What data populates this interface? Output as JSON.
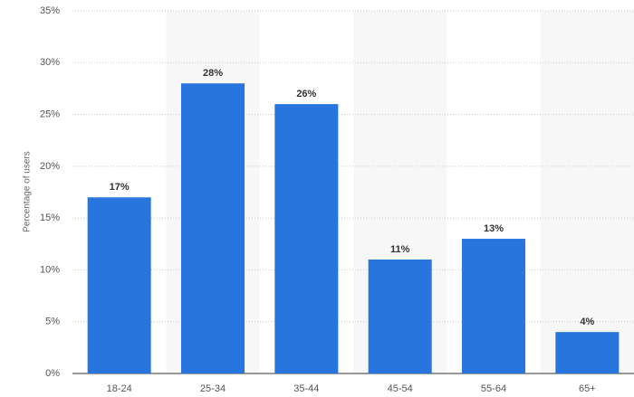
{
  "chart_data": {
    "type": "bar",
    "y_label": "Percentage of users",
    "categories": [
      "18-24",
      "25-34",
      "35-44",
      "45-54",
      "55-64",
      "65+"
    ],
    "values": [
      17,
      28,
      26,
      11,
      13,
      4
    ],
    "value_labels": [
      "17%",
      "28%",
      "26%",
      "11%",
      "13%",
      "4%"
    ],
    "color": "#2876dd",
    "ylim": [
      0,
      35
    ],
    "yticks": [
      {
        "value": 0,
        "label": "0%"
      },
      {
        "value": 5,
        "label": "5%"
      },
      {
        "value": 10,
        "label": "10%"
      },
      {
        "value": 15,
        "label": "15%"
      },
      {
        "value": 20,
        "label": "20%"
      },
      {
        "value": 25,
        "label": "25%"
      },
      {
        "value": 30,
        "label": "30%"
      },
      {
        "value": 35,
        "label": "35%"
      }
    ],
    "grid": true
  }
}
